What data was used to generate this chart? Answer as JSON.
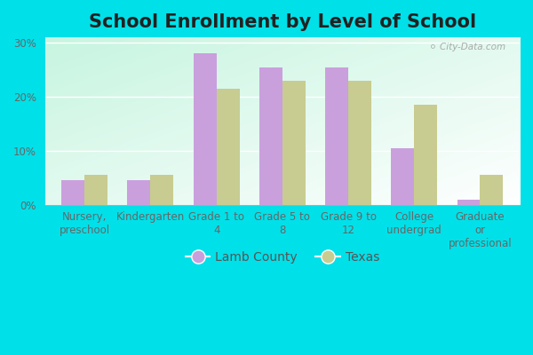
{
  "title": "School Enrollment by Level of School",
  "categories": [
    "Nursery,\npreschool",
    "Kindergarten",
    "Grade 1 to\n4",
    "Grade 5 to\n8",
    "Grade 9 to\n12",
    "College\nundergrad",
    "Graduate\nor\nprofessional"
  ],
  "lamb_county": [
    4.5,
    4.5,
    28.0,
    25.5,
    25.5,
    10.5,
    1.0
  ],
  "texas": [
    5.5,
    5.5,
    21.5,
    23.0,
    23.0,
    18.5,
    5.5
  ],
  "lamb_color": "#c9a0dc",
  "texas_color": "#c8cc90",
  "ylabel_ticks": [
    0,
    10,
    20,
    30
  ],
  "ytick_labels": [
    "0%",
    "10%",
    "20%",
    "30%"
  ],
  "ylim": [
    0,
    31
  ],
  "legend_lamb": "Lamb County",
  "legend_texas": "Texas",
  "title_fontsize": 15,
  "tick_fontsize": 8.5,
  "legend_fontsize": 10,
  "bar_width": 0.35,
  "outer_bg": "#00e0e8",
  "watermark": "City-Data.com"
}
